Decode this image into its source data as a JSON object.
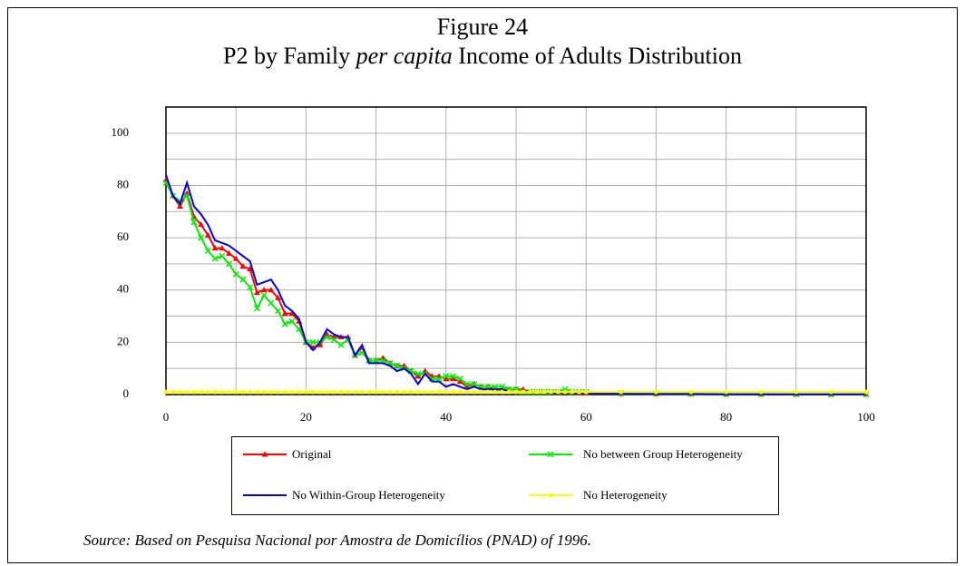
{
  "chart_data": {
    "type": "line",
    "title": "Figure 24",
    "subtitle": [
      "P2 by Family",
      "per capita",
      "Income of Adults Distribution"
    ],
    "note": "Source: Based on Pesquisa Nacional por Amostra de Domicílios (PNAD) of 1996.",
    "x": [
      0,
      1,
      2,
      3,
      4,
      5,
      6,
      7,
      8,
      9,
      10,
      11,
      12,
      13,
      14,
      15,
      16,
      17,
      18,
      19,
      20,
      21,
      22,
      23,
      24,
      25,
      26,
      27,
      28,
      29,
      30,
      31,
      32,
      33,
      34,
      35,
      36,
      37,
      38,
      39,
      40,
      41,
      42,
      43,
      44,
      45,
      46,
      47,
      48,
      49,
      50,
      51,
      52,
      53,
      54,
      55,
      56,
      57,
      58,
      59,
      60,
      65,
      70,
      75,
      80,
      85,
      90,
      95,
      100
    ],
    "series": [
      {
        "name": "Original",
        "color": "#ff0000",
        "marker": "triangle",
        "values": [
          82,
          76,
          72,
          77,
          68,
          65,
          61,
          56,
          56,
          54,
          52,
          49,
          48,
          39,
          40,
          40,
          37,
          31,
          31,
          28,
          20,
          18,
          19,
          23,
          22,
          22,
          22,
          15,
          18,
          13,
          13,
          14,
          12,
          11,
          11,
          9,
          7,
          9,
          7,
          7,
          6,
          6,
          5,
          3,
          4,
          3,
          3,
          2,
          2,
          2,
          2,
          2,
          1,
          1,
          1,
          1,
          1,
          1,
          1,
          0.5,
          0.5,
          0.3,
          0.2,
          0.2,
          0.1,
          0.1,
          0.1,
          0.1,
          0.1
        ]
      },
      {
        "name": "No between Group Heterogeneity",
        "color": "#00ee00",
        "marker": "cross",
        "values": [
          81,
          76,
          74,
          76,
          66,
          60,
          55,
          52,
          53,
          50,
          46,
          44,
          41,
          33,
          38,
          35,
          32,
          27,
          28,
          25,
          20,
          20,
          20,
          22,
          21,
          19,
          21,
          15,
          16,
          13,
          13,
          13,
          12,
          11,
          10,
          9,
          8,
          8,
          6,
          6,
          7,
          7,
          6,
          4,
          4,
          3,
          3,
          3,
          3,
          2,
          2,
          1,
          1,
          1,
          1,
          1,
          1,
          2,
          1,
          1,
          1,
          0.5,
          0.4,
          0.3,
          0.2,
          0.2,
          0.1,
          0.1,
          0.1
        ]
      },
      {
        "name": "No Within-Group Heterogeneity",
        "color": "#0000dd",
        "marker": "none",
        "values": [
          84,
          76,
          73,
          81,
          72,
          69,
          65,
          59,
          58,
          57,
          55,
          53,
          51,
          42,
          43,
          44,
          40,
          34,
          32,
          29,
          20,
          17,
          20,
          25,
          23,
          22,
          22,
          15,
          19,
          12,
          12,
          12,
          11,
          9,
          10,
          8,
          4,
          8,
          5,
          5,
          3,
          4,
          3,
          2,
          3,
          2,
          2,
          2,
          2,
          1,
          1,
          1,
          1,
          1,
          1,
          0.5,
          0.5,
          1,
          0.5,
          0.5,
          0.5,
          0.3,
          0.2,
          0.2,
          0.1,
          0.1,
          0.1,
          0.1,
          0.1
        ]
      },
      {
        "name": "No Heterogeneity",
        "color": "#ffff00",
        "marker": "circle",
        "values": [
          1,
          1,
          1,
          1,
          1,
          1,
          1,
          1,
          1,
          1,
          1,
          1,
          1,
          1,
          1,
          1,
          1,
          1,
          1,
          1,
          1,
          1,
          1,
          1,
          1,
          1,
          1,
          1,
          1,
          1,
          1,
          1,
          1,
          1,
          1,
          1,
          1,
          1,
          1,
          1,
          1,
          1,
          1,
          1,
          1,
          1,
          1,
          1,
          1,
          1,
          1,
          1,
          1,
          1,
          1,
          1,
          1,
          1,
          1,
          1,
          1,
          1,
          1,
          1,
          1,
          1,
          1,
          1,
          1
        ]
      }
    ],
    "xlim": [
      0,
      100
    ],
    "xticks": [
      0,
      20,
      40,
      60,
      80,
      100
    ],
    "x_minor_ticks": [
      10,
      30,
      50,
      70,
      90
    ],
    "ylim": [
      0,
      110
    ],
    "yticks": [
      0,
      20,
      40,
      60,
      80,
      100
    ],
    "y_minor_ticks": [
      10,
      30,
      50,
      70,
      90,
      110
    ],
    "grid": true
  }
}
